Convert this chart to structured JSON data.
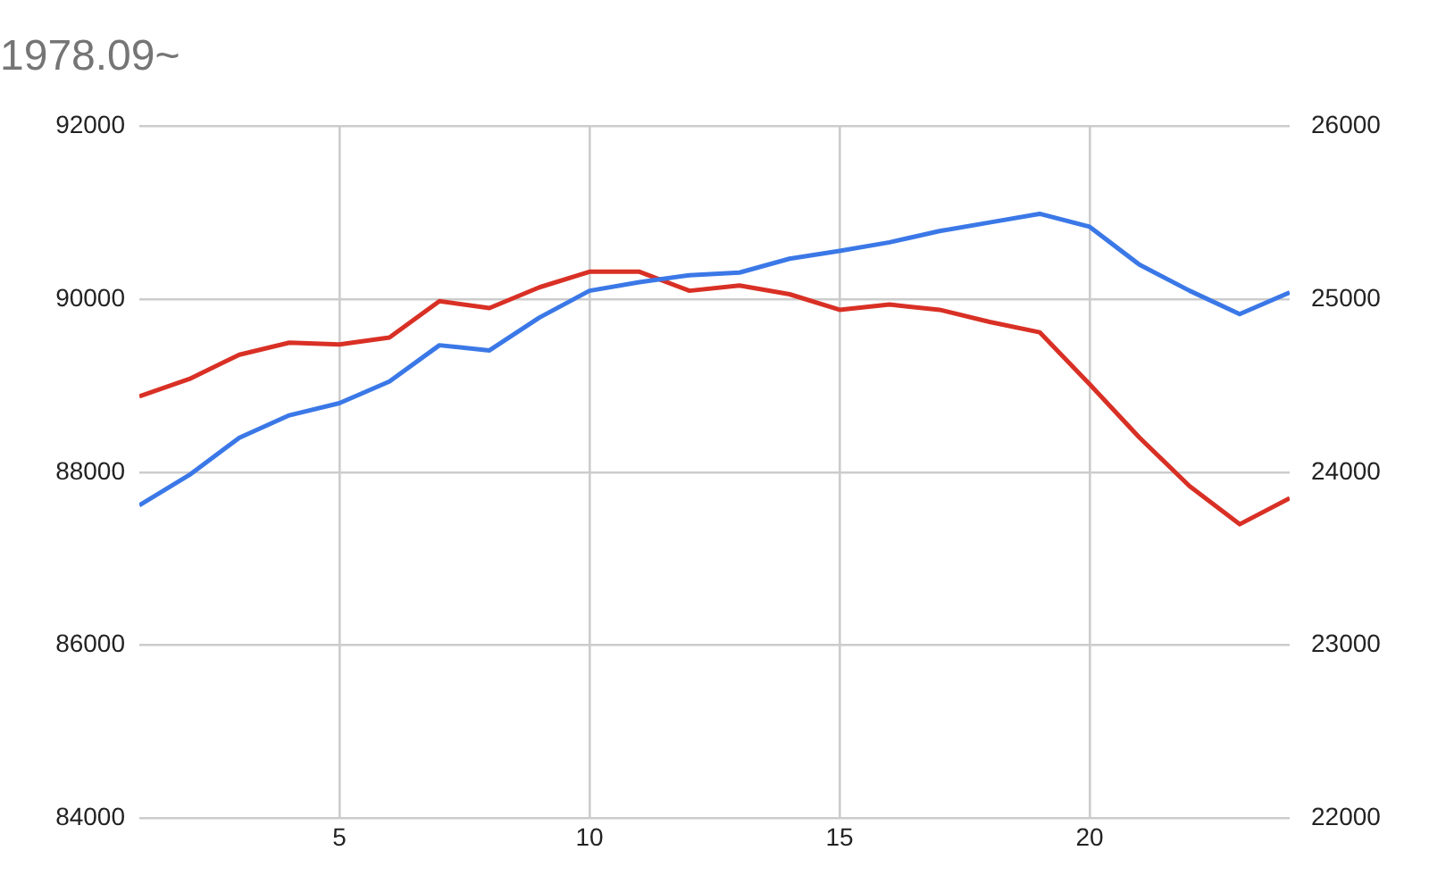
{
  "chart_data": {
    "type": "line",
    "title": "1978.09~",
    "x": [
      1,
      2,
      3,
      4,
      5,
      6,
      7,
      8,
      9,
      10,
      11,
      12,
      13,
      14,
      15,
      16,
      17,
      18,
      19,
      20,
      21,
      22,
      23,
      24
    ],
    "series": [
      {
        "color": "#3b78e7",
        "values": [
          87620,
          87970,
          88400,
          88660,
          88800,
          89050,
          89470,
          89410,
          89790,
          90100,
          90200,
          90280,
          90310,
          90470,
          90560,
          90660,
          90790,
          90890,
          90990,
          90840,
          90400,
          90100,
          89830,
          90080
        ]
      },
      {
        "color": "#d93025",
        "axis": "y2",
        "values": [
          24440,
          24540,
          24680,
          24750,
          24740,
          24780,
          24990,
          24950,
          25070,
          25160,
          25160,
          25050,
          25080,
          25030,
          24940,
          24970,
          24940,
          24870,
          24810,
          24510,
          24200,
          23920,
          23700,
          23850
        ]
      }
    ],
    "xlim": [
      1,
      24
    ],
    "xticks": [
      5,
      10,
      15,
      20
    ],
    "ylim": [
      84000,
      92000
    ],
    "yticks": [
      84000,
      86000,
      88000,
      90000,
      92000
    ],
    "y2lim": [
      22000,
      26000
    ],
    "y2ticks": [
      22000,
      23000,
      24000,
      25000,
      26000
    ],
    "grid": true,
    "legend": false,
    "marker": "none",
    "line_style": "solid"
  }
}
